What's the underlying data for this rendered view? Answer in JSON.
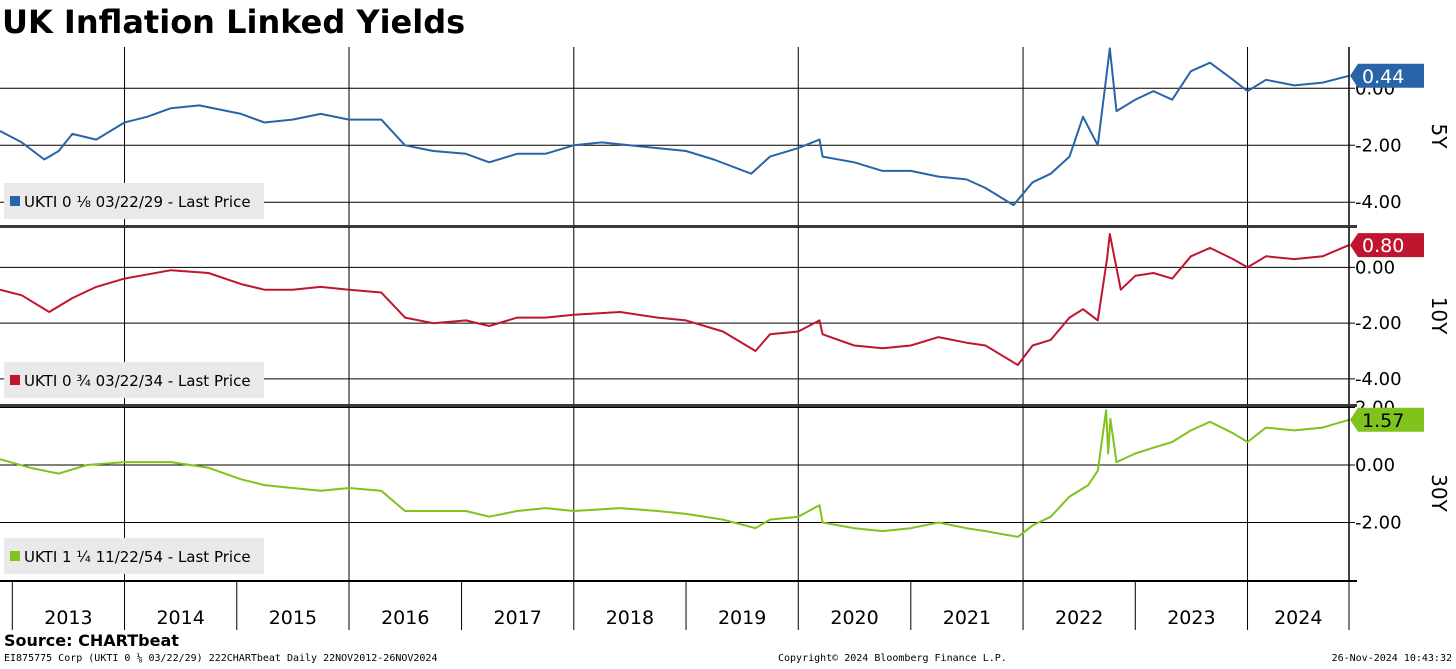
{
  "title": "UK Inflation Linked Yields",
  "source": "Source: CHARTbeat",
  "footer": {
    "left": "EI875775 Corp (UKTI 0 ⅛ 03/22/29) 222CHARTbeat  Daily 22NOV2012-26NOV2024",
    "center": "Copyright© 2024 Bloomberg Finance L.P.",
    "right": "26-Nov-2024 10:43:32"
  },
  "chart_data": {
    "type": "line",
    "x_years": [
      "2013",
      "2014",
      "2015",
      "2016",
      "2017",
      "2018",
      "2019",
      "2020",
      "2021",
      "2022",
      "2023",
      "2024"
    ],
    "x_range": [
      "2012-11-22",
      "2024-11-26"
    ],
    "grid": true,
    "panels": [
      {
        "tenor": "5Y",
        "legend": "UKTI 0 ⅛ 03/22/29 - Last Price",
        "color": "#2a64a8",
        "last_value": "0.44",
        "yticks": [
          "0.00",
          "-2.00",
          "-4.00"
        ],
        "ylim": [
          -4.8,
          1.45
        ],
        "points": [
          [
            "2012-11-22",
            -1.5
          ],
          [
            "2013-02-01",
            -1.9
          ],
          [
            "2013-04-15",
            -2.5
          ],
          [
            "2013-06-01",
            -2.2
          ],
          [
            "2013-07-15",
            -1.6
          ],
          [
            "2013-10-01",
            -1.8
          ],
          [
            "2014-01-01",
            -1.2
          ],
          [
            "2014-03-15",
            -1.0
          ],
          [
            "2014-06-01",
            -0.7
          ],
          [
            "2014-09-01",
            -0.6
          ],
          [
            "2015-01-15",
            -0.9
          ],
          [
            "2015-04-01",
            -1.2
          ],
          [
            "2015-07-01",
            -1.1
          ],
          [
            "2015-10-01",
            -0.9
          ],
          [
            "2016-01-01",
            -1.1
          ],
          [
            "2016-04-15",
            -1.1
          ],
          [
            "2016-07-01",
            -2.0
          ],
          [
            "2016-10-01",
            -2.2
          ],
          [
            "2017-01-15",
            -2.3
          ],
          [
            "2017-04-01",
            -2.6
          ],
          [
            "2017-07-01",
            -2.3
          ],
          [
            "2017-10-01",
            -2.3
          ],
          [
            "2018-01-01",
            -2.0
          ],
          [
            "2018-04-01",
            -1.9
          ],
          [
            "2018-07-01",
            -2.0
          ],
          [
            "2018-10-01",
            -2.1
          ],
          [
            "2019-01-01",
            -2.2
          ],
          [
            "2019-04-01",
            -2.5
          ],
          [
            "2019-08-01",
            -3.0
          ],
          [
            "2019-10-01",
            -2.4
          ],
          [
            "2020-01-01",
            -2.1
          ],
          [
            "2020-03-10",
            -1.8
          ],
          [
            "2020-03-20",
            -2.4
          ],
          [
            "2020-07-01",
            -2.6
          ],
          [
            "2020-10-01",
            -2.9
          ],
          [
            "2021-01-01",
            -2.9
          ],
          [
            "2021-04-01",
            -3.1
          ],
          [
            "2021-07-01",
            -3.2
          ],
          [
            "2021-09-01",
            -3.5
          ],
          [
            "2021-12-01",
            -4.1
          ],
          [
            "2022-02-01",
            -3.3
          ],
          [
            "2022-04-01",
            -3.0
          ],
          [
            "2022-06-01",
            -2.4
          ],
          [
            "2022-07-15",
            -1.0
          ],
          [
            "2022-09-01",
            -2.0
          ],
          [
            "2022-10-01",
            0.6
          ],
          [
            "2022-10-10",
            1.4
          ],
          [
            "2022-11-01",
            -0.8
          ],
          [
            "2023-01-01",
            -0.4
          ],
          [
            "2023-03-01",
            -0.1
          ],
          [
            "2023-05-01",
            -0.4
          ],
          [
            "2023-07-01",
            0.6
          ],
          [
            "2023-09-01",
            0.9
          ],
          [
            "2023-11-15",
            0.3
          ],
          [
            "2024-01-01",
            -0.1
          ],
          [
            "2024-03-01",
            0.3
          ],
          [
            "2024-06-01",
            0.1
          ],
          [
            "2024-09-01",
            0.2
          ],
          [
            "2024-11-26",
            0.44
          ]
        ]
      },
      {
        "tenor": "10Y",
        "legend": "UKTI 0 ¾ 03/22/34 - Last Price",
        "color": "#c0152f",
        "last_value": "0.80",
        "yticks": [
          "0.00",
          "-2.00",
          "-4.00"
        ],
        "ylim": [
          -4.9,
          1.45
        ],
        "points": [
          [
            "2012-11-22",
            -0.8
          ],
          [
            "2013-02-01",
            -1.0
          ],
          [
            "2013-05-01",
            -1.6
          ],
          [
            "2013-07-15",
            -1.1
          ],
          [
            "2013-10-01",
            -0.7
          ],
          [
            "2014-01-01",
            -0.4
          ],
          [
            "2014-06-01",
            -0.1
          ],
          [
            "2014-10-01",
            -0.2
          ],
          [
            "2015-01-15",
            -0.6
          ],
          [
            "2015-04-01",
            -0.8
          ],
          [
            "2015-07-01",
            -0.8
          ],
          [
            "2015-10-01",
            -0.7
          ],
          [
            "2016-01-01",
            -0.8
          ],
          [
            "2016-04-15",
            -0.9
          ],
          [
            "2016-07-01",
            -1.8
          ],
          [
            "2016-10-01",
            -2.0
          ],
          [
            "2017-01-15",
            -1.9
          ],
          [
            "2017-04-01",
            -2.1
          ],
          [
            "2017-07-01",
            -1.8
          ],
          [
            "2017-10-01",
            -1.8
          ],
          [
            "2018-01-01",
            -1.7
          ],
          [
            "2018-06-01",
            -1.6
          ],
          [
            "2018-10-01",
            -1.8
          ],
          [
            "2019-01-01",
            -1.9
          ],
          [
            "2019-05-01",
            -2.3
          ],
          [
            "2019-08-15",
            -3.0
          ],
          [
            "2019-10-01",
            -2.4
          ],
          [
            "2020-01-01",
            -2.3
          ],
          [
            "2020-03-10",
            -1.9
          ],
          [
            "2020-03-20",
            -2.4
          ],
          [
            "2020-07-01",
            -2.8
          ],
          [
            "2020-10-01",
            -2.9
          ],
          [
            "2021-01-01",
            -2.8
          ],
          [
            "2021-04-01",
            -2.5
          ],
          [
            "2021-07-01",
            -2.7
          ],
          [
            "2021-09-01",
            -2.8
          ],
          [
            "2021-12-15",
            -3.5
          ],
          [
            "2022-02-01",
            -2.8
          ],
          [
            "2022-04-01",
            -2.6
          ],
          [
            "2022-06-01",
            -1.8
          ],
          [
            "2022-07-15",
            -1.5
          ],
          [
            "2022-09-01",
            -1.9
          ],
          [
            "2022-10-01",
            0.3
          ],
          [
            "2022-10-10",
            1.2
          ],
          [
            "2022-11-15",
            -0.8
          ],
          [
            "2023-01-01",
            -0.3
          ],
          [
            "2023-03-01",
            -0.2
          ],
          [
            "2023-05-01",
            -0.4
          ],
          [
            "2023-07-01",
            0.4
          ],
          [
            "2023-09-01",
            0.7
          ],
          [
            "2023-11-15",
            0.3
          ],
          [
            "2024-01-01",
            0.0
          ],
          [
            "2024-03-01",
            0.4
          ],
          [
            "2024-06-01",
            0.3
          ],
          [
            "2024-09-01",
            0.4
          ],
          [
            "2024-11-26",
            0.8
          ]
        ]
      },
      {
        "tenor": "30Y",
        "legend": "UKTI 1 ¼ 11/22/54 - Last Price",
        "color": "#7fc31c",
        "last_value": "1.57",
        "yticks": [
          "2.00",
          "0.00",
          "-2.00"
        ],
        "ylim": [
          -4.0,
          2.05
        ],
        "points": [
          [
            "2012-11-22",
            0.2
          ],
          [
            "2013-03-01",
            -0.1
          ],
          [
            "2013-06-01",
            -0.3
          ],
          [
            "2013-09-01",
            0.0
          ],
          [
            "2014-01-01",
            0.1
          ],
          [
            "2014-06-01",
            0.1
          ],
          [
            "2014-10-01",
            -0.1
          ],
          [
            "2015-01-15",
            -0.5
          ],
          [
            "2015-04-01",
            -0.7
          ],
          [
            "2015-07-01",
            -0.8
          ],
          [
            "2015-10-01",
            -0.9
          ],
          [
            "2016-01-01",
            -0.8
          ],
          [
            "2016-04-15",
            -0.9
          ],
          [
            "2016-07-01",
            -1.6
          ],
          [
            "2016-10-01",
            -1.6
          ],
          [
            "2017-01-15",
            -1.6
          ],
          [
            "2017-04-01",
            -1.8
          ],
          [
            "2017-07-01",
            -1.6
          ],
          [
            "2017-10-01",
            -1.5
          ],
          [
            "2018-01-01",
            -1.6
          ],
          [
            "2018-06-01",
            -1.5
          ],
          [
            "2018-10-01",
            -1.6
          ],
          [
            "2019-01-01",
            -1.7
          ],
          [
            "2019-05-01",
            -1.9
          ],
          [
            "2019-08-15",
            -2.2
          ],
          [
            "2019-10-01",
            -1.9
          ],
          [
            "2020-01-01",
            -1.8
          ],
          [
            "2020-03-10",
            -1.4
          ],
          [
            "2020-03-20",
            -2.0
          ],
          [
            "2020-07-01",
            -2.2
          ],
          [
            "2020-10-01",
            -2.3
          ],
          [
            "2021-01-01",
            -2.2
          ],
          [
            "2021-04-01",
            -2.0
          ],
          [
            "2021-07-01",
            -2.2
          ],
          [
            "2021-09-01",
            -2.3
          ],
          [
            "2021-12-15",
            -2.5
          ],
          [
            "2022-02-01",
            -2.1
          ],
          [
            "2022-04-01",
            -1.8
          ],
          [
            "2022-06-01",
            -1.1
          ],
          [
            "2022-08-01",
            -0.7
          ],
          [
            "2022-09-01",
            -0.2
          ],
          [
            "2022-09-28",
            1.9
          ],
          [
            "2022-10-05",
            0.4
          ],
          [
            "2022-10-12",
            1.6
          ],
          [
            "2022-11-01",
            0.1
          ],
          [
            "2023-01-01",
            0.4
          ],
          [
            "2023-03-01",
            0.6
          ],
          [
            "2023-05-01",
            0.8
          ],
          [
            "2023-07-01",
            1.2
          ],
          [
            "2023-09-01",
            1.5
          ],
          [
            "2023-11-15",
            1.1
          ],
          [
            "2024-01-01",
            0.8
          ],
          [
            "2024-03-01",
            1.3
          ],
          [
            "2024-06-01",
            1.2
          ],
          [
            "2024-09-01",
            1.3
          ],
          [
            "2024-11-26",
            1.57
          ]
        ]
      }
    ]
  }
}
